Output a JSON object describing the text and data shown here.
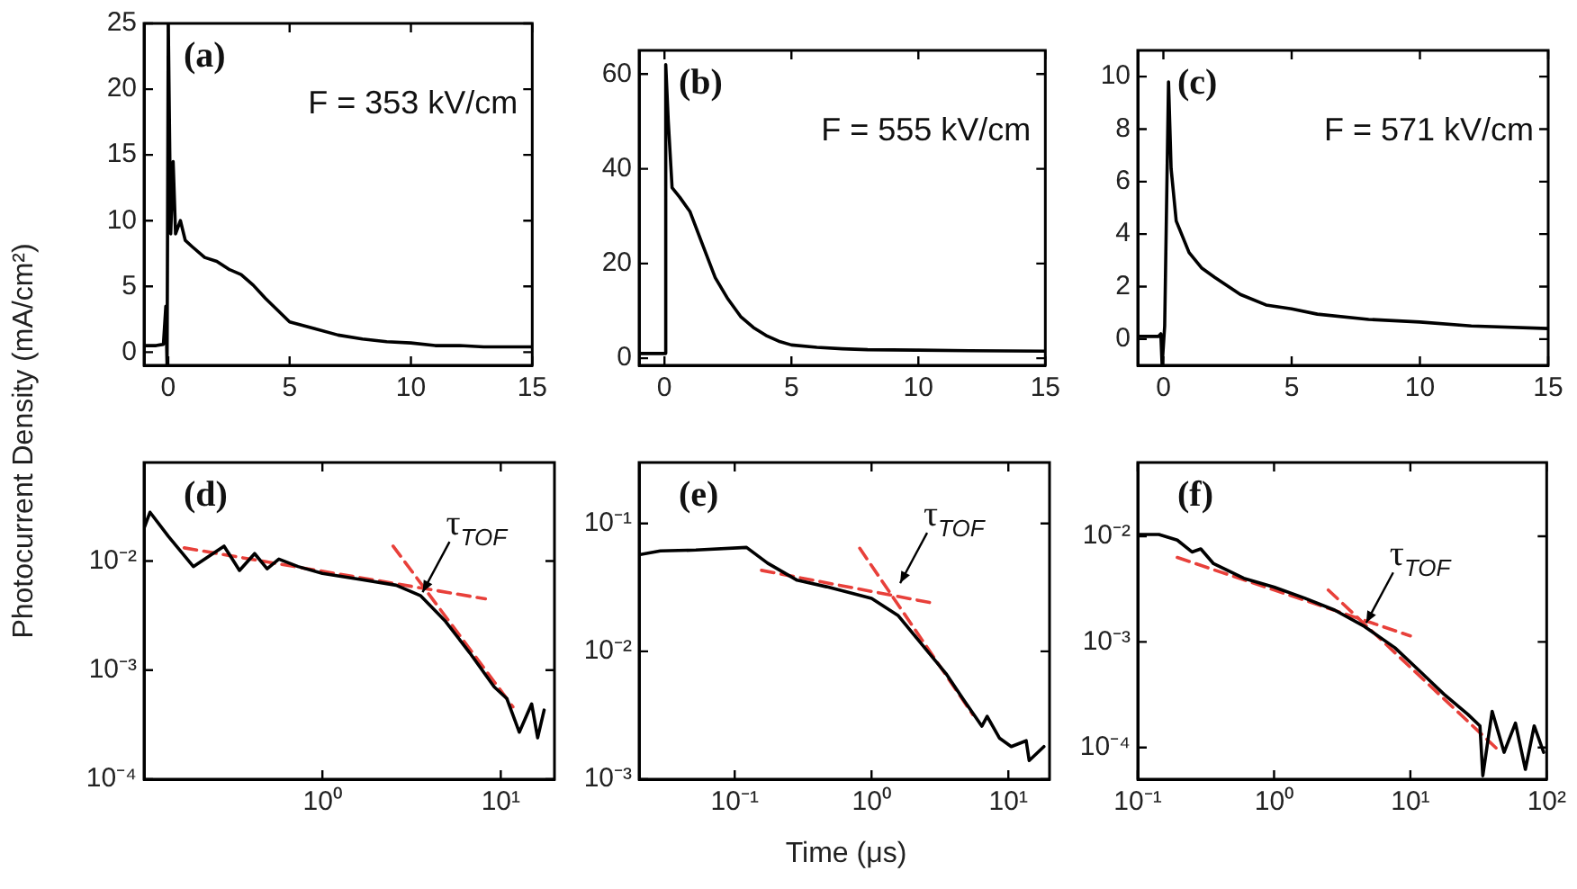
{
  "chart_data": [
    {
      "type": "line",
      "ylabel": "Photocurrent Density (mA/cm²)",
      "annotations": [
        "(a)",
        "F = 353 kV/cm"
      ],
      "xlim": [
        -1,
        15
      ],
      "xticks": [
        0,
        5,
        10,
        15
      ],
      "ylim": [
        -1,
        25
      ],
      "yticks": [
        0,
        5,
        10,
        15,
        20,
        25
      ],
      "grid": false,
      "legend": false,
      "marker": "none",
      "series": [
        {
          "color": "#000000",
          "x": [
            -1,
            -0.5,
            -0.2,
            -0.1,
            -0.05,
            0,
            0.1,
            0.2,
            0.3,
            0.5,
            0.7,
            1,
            1.5,
            2,
            2.5,
            3,
            3.5,
            4,
            5,
            6,
            7,
            8,
            9,
            10,
            11,
            12,
            13,
            14,
            15
          ],
          "values": [
            0.5,
            0.5,
            0.6,
            3.5,
            -1,
            25,
            9,
            14.5,
            9,
            10,
            8.5,
            8,
            7.2,
            6.9,
            6.3,
            5.9,
            5.1,
            4.1,
            2.3,
            1.8,
            1.3,
            1.0,
            0.8,
            0.7,
            0.5,
            0.5,
            0.4,
            0.4,
            0.4
          ]
        }
      ]
    },
    {
      "type": "line",
      "annotations": [
        "(b)",
        "F = 555 kV/cm"
      ],
      "xlim": [
        -1,
        15
      ],
      "xticks": [
        0,
        5,
        10,
        15
      ],
      "ylim": [
        -1.5,
        65
      ],
      "yticks": [
        0,
        20,
        40,
        60
      ],
      "grid": false,
      "legend": false,
      "marker": "none",
      "series": [
        {
          "color": "#000000",
          "x": [
            -1,
            -0.1,
            0,
            0.05,
            0.15,
            0.3,
            0.6,
            1,
            1.5,
            2,
            2.5,
            3,
            3.5,
            4,
            4.5,
            5,
            6,
            7,
            8,
            10,
            12,
            15
          ],
          "values": [
            1,
            1,
            1,
            62,
            50,
            36,
            34,
            31,
            24,
            17,
            12.5,
            8.8,
            6.5,
            4.8,
            3.6,
            2.8,
            2.3,
            2,
            1.8,
            1.7,
            1.6,
            1.5
          ]
        }
      ]
    },
    {
      "type": "line",
      "annotations": [
        "(c)",
        "F = 571 kV/cm"
      ],
      "xlim": [
        -1,
        15
      ],
      "xticks": [
        0,
        5,
        10,
        15
      ],
      "ylim": [
        -1,
        11
      ],
      "yticks": [
        0,
        2,
        4,
        6,
        8,
        10
      ],
      "grid": false,
      "legend": false,
      "marker": "none",
      "series": [
        {
          "color": "#000000",
          "x": [
            -1,
            -0.2,
            -0.1,
            -0.05,
            0.05,
            0.2,
            0.3,
            0.5,
            1,
            1.5,
            2,
            3,
            4,
            5,
            6,
            8,
            10,
            12,
            15
          ],
          "values": [
            0.1,
            0.1,
            0.2,
            -1,
            0.5,
            9.8,
            6.5,
            4.5,
            3.3,
            2.7,
            2.35,
            1.7,
            1.3,
            1.15,
            0.95,
            0.75,
            0.65,
            0.5,
            0.4
          ]
        }
      ]
    },
    {
      "type": "line",
      "log": "xy",
      "annotations": [
        "(d)",
        {
          "text": "τ$_{TOF}$",
          "x": 3.56,
          "y": 0.0048
        }
      ],
      "xlim": [
        0.1,
        20
      ],
      "xticks": [
        {
          "value": 1,
          "label": "10⁰"
        },
        {
          "value": 10,
          "label": "10¹"
        }
      ],
      "ylim": [
        0.0001,
        0.08
      ],
      "yticks": [
        {
          "value": 0.0001,
          "label": "10⁻⁴"
        },
        {
          "value": 0.001,
          "label": "10⁻³"
        },
        {
          "value": 0.01,
          "label": "10⁻²"
        }
      ],
      "grid": false,
      "legend": false,
      "marker": "none",
      "series": [
        {
          "color": "#000000",
          "x": [
            0.1,
            0.108,
            0.137,
            0.189,
            0.281,
            0.343,
            0.417,
            0.49,
            0.57,
            0.73,
            1,
            1.61,
            2.59,
            3.56,
            4.9,
            6.7,
            9.2,
            10.8,
            12.7,
            14.9,
            16.1,
            17.5
          ],
          "values": [
            0.02,
            0.028,
            0.0168,
            0.0089,
            0.0137,
            0.0082,
            0.0117,
            0.0085,
            0.0104,
            0.0089,
            0.0077,
            0.0068,
            0.006,
            0.0048,
            0.0028,
            0.00144,
            0.0007,
            0.00055,
            0.00027,
            0.00049,
            0.00024,
            0.00043
          ]
        },
        {
          "type": "line",
          "color": "#e8403a",
          "line_style": "dashed",
          "x": [
            0.168,
            8.2
          ],
          "values": [
            0.0132,
            0.0045
          ]
        },
        {
          "type": "line",
          "color": "#e8403a",
          "line_style": "dashed",
          "x": [
            2.49,
            11.7
          ],
          "values": [
            0.0137,
            0.00046
          ]
        }
      ]
    },
    {
      "type": "line",
      "log": "xy",
      "xlabel": "Time (μs)",
      "annotations": [
        "(e)",
        {
          "text": "τ$_{TOF}$",
          "x": 1.57,
          "y": 0.032
        }
      ],
      "xlim": [
        0.02,
        20
      ],
      "xticks": [
        {
          "value": 0.1,
          "label": "10⁻¹"
        },
        {
          "value": 1,
          "label": "10⁰"
        },
        {
          "value": 10,
          "label": "10¹"
        }
      ],
      "ylim": [
        0.001,
        0.3
      ],
      "yticks": [
        {
          "value": 0.001,
          "label": "10⁻³"
        },
        {
          "value": 0.01,
          "label": "10⁻²"
        },
        {
          "value": 0.1,
          "label": "10⁻¹"
        }
      ],
      "grid": false,
      "legend": false,
      "marker": "none",
      "series": [
        {
          "color": "#000000",
          "x": [
            0.02,
            0.0286,
            0.052,
            0.122,
            0.174,
            0.286,
            0.47,
            1,
            1.57,
            2.34,
            3.5,
            4.7,
            6.4,
            7,
            8.6,
            10.5,
            13.5,
            14.2,
            18.2
          ],
          "values": [
            0.057,
            0.061,
            0.062,
            0.065,
            0.049,
            0.036,
            0.032,
            0.026,
            0.019,
            0.0113,
            0.0067,
            0.0042,
            0.0026,
            0.0031,
            0.0021,
            0.0018,
            0.002,
            0.0014,
            0.0018
          ]
        },
        {
          "type": "line",
          "color": "#e8403a",
          "line_style": "dashed",
          "x": [
            0.157,
            2.72
          ],
          "values": [
            0.043,
            0.024
          ]
        },
        {
          "type": "line",
          "color": "#e8403a",
          "line_style": "dashed",
          "x": [
            0.82,
            5.5
          ],
          "values": [
            0.064,
            0.0032
          ]
        }
      ]
    },
    {
      "type": "line",
      "log": "xy",
      "annotations": [
        "(f)",
        {
          "text": "τ$_{TOF}$",
          "x": 4.6,
          "y": 0.0014
        }
      ],
      "xlim": [
        0.1,
        100
      ],
      "xticks": [
        {
          "value": 0.1,
          "label": "10⁻¹"
        },
        {
          "value": 1,
          "label": "10⁰"
        },
        {
          "value": 10,
          "label": "10¹"
        },
        {
          "value": 100,
          "label": "10²"
        }
      ],
      "ylim": [
        5e-05,
        0.05
      ],
      "yticks": [
        {
          "value": 0.0001,
          "label": "10⁻⁴"
        },
        {
          "value": 0.001,
          "label": "10⁻³"
        },
        {
          "value": 0.01,
          "label": "10⁻²"
        }
      ],
      "grid": false,
      "legend": false,
      "marker": "none",
      "series": [
        {
          "color": "#000000",
          "x": [
            0.1,
            0.143,
            0.195,
            0.25,
            0.29,
            0.36,
            0.6,
            1,
            1.67,
            2.78,
            4.6,
            7.7,
            11.7,
            17.6,
            26.4,
            32.4,
            34,
            39.8,
            48.7,
            59,
            69.8,
            81,
            95
          ],
          "values": [
            0.0104,
            0.0104,
            0.0092,
            0.0071,
            0.0076,
            0.0055,
            0.004,
            0.0033,
            0.0026,
            0.002,
            0.0014,
            0.00088,
            0.00053,
            0.00032,
            0.000206,
            0.00016,
            5.4e-05,
            0.00022,
            9e-05,
            0.00017,
            6.2e-05,
            0.00016,
            9e-05
          ]
        },
        {
          "type": "line",
          "color": "#e8403a",
          "line_style": "dashed",
          "x": [
            0.195,
            10
          ],
          "values": [
            0.0063,
            0.00114
          ]
        },
        {
          "type": "line",
          "color": "#e8403a",
          "line_style": "dashed",
          "x": [
            2.5,
            46
          ],
          "values": [
            0.0031,
            9e-05
          ]
        }
      ]
    }
  ]
}
